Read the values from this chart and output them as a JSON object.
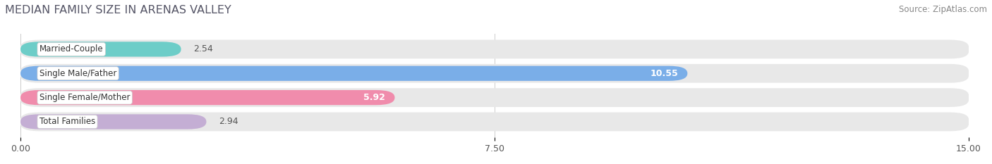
{
  "title": "MEDIAN FAMILY SIZE IN ARENAS VALLEY",
  "source": "Source: ZipAtlas.com",
  "categories": [
    "Married-Couple",
    "Single Male/Father",
    "Single Female/Mother",
    "Total Families"
  ],
  "values": [
    2.54,
    10.55,
    5.92,
    2.94
  ],
  "bar_colors": [
    "#6dcdc8",
    "#7aaee8",
    "#f08cac",
    "#c4aed4"
  ],
  "bar_background": "#e8e8e8",
  "xlim": [
    0,
    15.0
  ],
  "xticks": [
    0.0,
    7.5,
    15.0
  ],
  "xtick_labels": [
    "0.00",
    "7.50",
    "15.00"
  ],
  "figsize": [
    14.06,
    2.33
  ],
  "dpi": 100,
  "title_color": "#555566",
  "source_color": "#888888",
  "label_box_color": "#ffffff",
  "value_color_outside": "#555555",
  "value_color_inside": "#ffffff"
}
